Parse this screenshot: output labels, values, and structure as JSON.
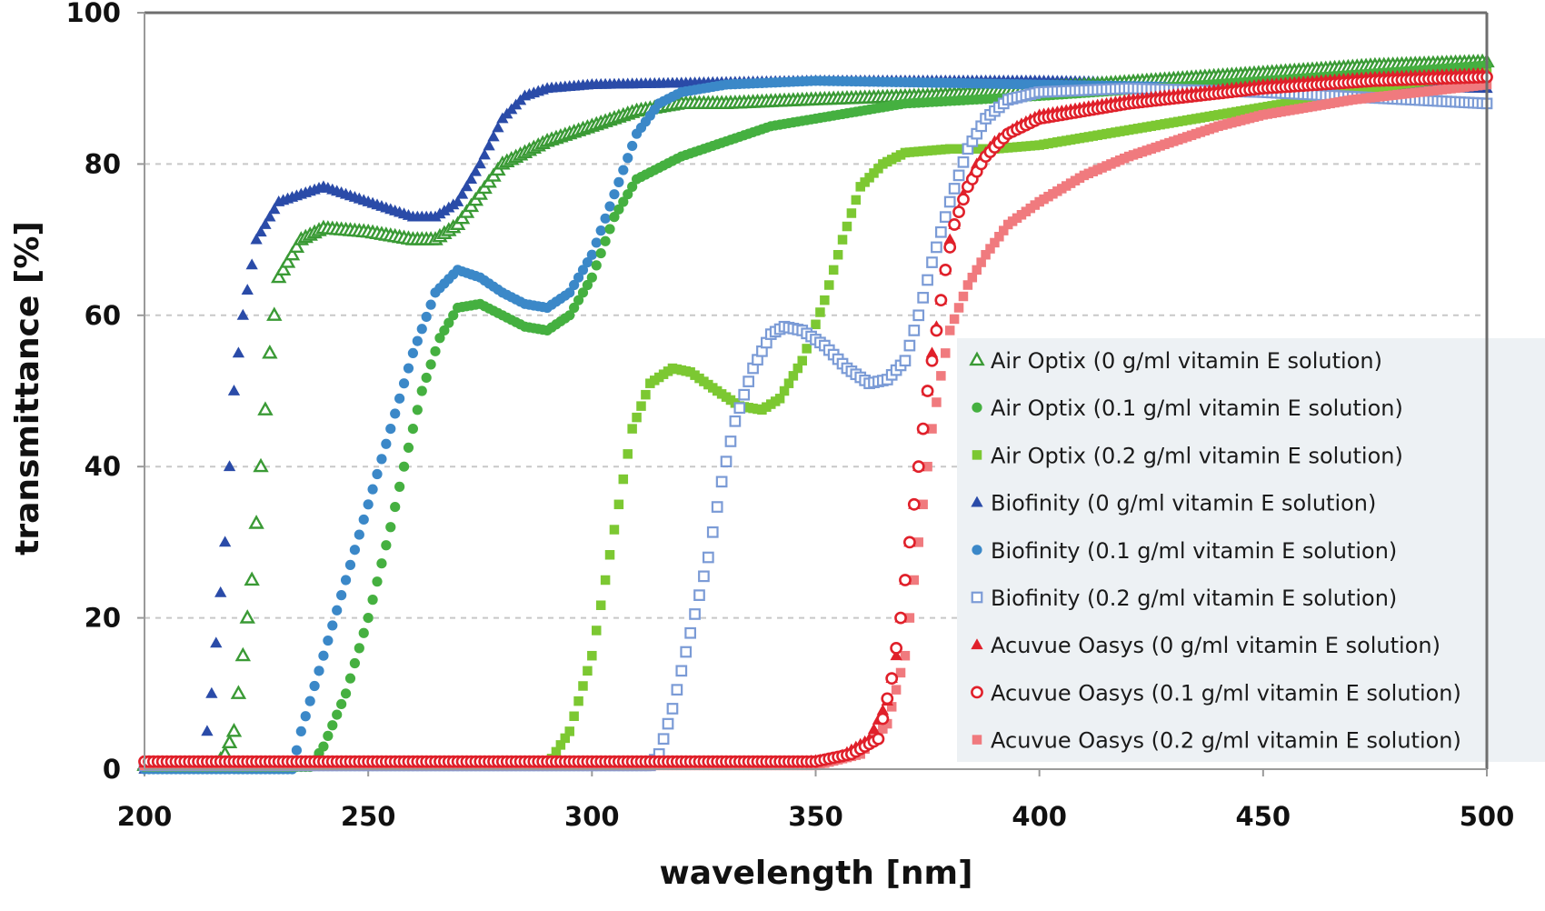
{
  "chart_data": {
    "type": "scatter",
    "title": "",
    "xlabel": "wavelength [nm]",
    "ylabel": "transmittance [%]",
    "xlim": [
      200,
      500
    ],
    "ylim": [
      0,
      100
    ],
    "xticks": [
      200,
      250,
      300,
      350,
      400,
      450,
      500
    ],
    "yticks": [
      0,
      20,
      40,
      60,
      80,
      100
    ],
    "grid": "horizontal dashed",
    "legend_position": "right",
    "series": [
      {
        "name": "Air Optix (0 g/ml vitamin E solution)",
        "marker": "triangle-open",
        "color": "#3a9a35",
        "x": [
          200,
          216,
          218,
          220,
          222,
          224,
          226,
          228,
          230,
          235,
          240,
          250,
          260,
          265,
          270,
          275,
          280,
          290,
          300,
          310,
          320,
          330,
          350,
          375,
          400,
          425,
          450,
          475,
          500
        ],
        "y": [
          0.5,
          0.5,
          2,
          5,
          15,
          25,
          40,
          55,
          65,
          70,
          71.5,
          71,
          70,
          70,
          72,
          76,
          80,
          83,
          85,
          87,
          88,
          88,
          88.5,
          89,
          90,
          91,
          92,
          93,
          93.5
        ]
      },
      {
        "name": "Air Optix (0.1 g/ml vitamin E solution)",
        "marker": "circle",
        "color": "#45b040",
        "x": [
          200,
          237,
          240,
          245,
          250,
          255,
          258,
          262,
          266,
          270,
          275,
          280,
          285,
          290,
          295,
          300,
          305,
          310,
          320,
          330,
          340,
          350,
          370,
          400,
          425,
          450,
          475,
          500
        ],
        "y": [
          0.3,
          0.3,
          3,
          10,
          20,
          32,
          40,
          50,
          57,
          61,
          61.5,
          60,
          58.5,
          58,
          60,
          65,
          73,
          78,
          81,
          83,
          85,
          86,
          88,
          89,
          90,
          91,
          92,
          93
        ]
      },
      {
        "name": "Air Optix (0.2 g/ml vitamin E solution)",
        "marker": "square",
        "color": "#7cc832",
        "x": [
          200,
          290,
          295,
          300,
          303,
          306,
          309,
          313,
          318,
          322,
          328,
          333,
          338,
          342,
          347,
          352,
          356,
          360,
          365,
          370,
          380,
          390,
          400,
          420,
          440,
          460,
          480,
          500
        ],
        "y": [
          0.5,
          0.5,
          5,
          15,
          25,
          35,
          45,
          51,
          53,
          52.5,
          50,
          48,
          47.5,
          49,
          54,
          62,
          70,
          77,
          80,
          81.5,
          82,
          82,
          82.5,
          84.5,
          86.5,
          88.5,
          90.5,
          92
        ]
      },
      {
        "name": "Biofinity (0 g/ml vitamin E solution)",
        "marker": "triangle",
        "color": "#2a4ba8",
        "x": [
          200,
          213,
          215,
          218,
          220,
          222,
          225,
          230,
          240,
          250,
          260,
          265,
          270,
          275,
          280,
          285,
          290,
          300,
          350,
          400,
          450,
          500
        ],
        "y": [
          0,
          0,
          10,
          30,
          50,
          60,
          70,
          75,
          77,
          75,
          73,
          73,
          75,
          80,
          86,
          89,
          90,
          90.5,
          91,
          91,
          90.5,
          90
        ]
      },
      {
        "name": "Biofinity (0.1 g/ml vitamin E solution)",
        "marker": "circle",
        "color": "#3b88c8",
        "x": [
          200,
          233,
          235,
          240,
          245,
          250,
          255,
          260,
          265,
          270,
          275,
          280,
          285,
          290,
          295,
          300,
          305,
          310,
          315,
          320,
          330,
          350,
          400,
          450,
          500
        ],
        "y": [
          0,
          0,
          5,
          15,
          25,
          35,
          45,
          55,
          63,
          66,
          65,
          63,
          61.5,
          61,
          63,
          68,
          76,
          84,
          88,
          89.5,
          90.5,
          91,
          90.5,
          90,
          88
        ]
      },
      {
        "name": "Biofinity (0.2 g/ml vitamin E solution)",
        "marker": "square-open",
        "color": "#7b9bd6",
        "x": [
          200,
          313,
          315,
          318,
          322,
          326,
          329,
          332,
          336,
          340,
          343,
          347,
          352,
          357,
          362,
          366,
          370,
          373,
          376,
          380,
          384,
          388,
          393,
          400,
          420,
          450,
          500
        ],
        "y": [
          0.5,
          0.5,
          2,
          8,
          18,
          28,
          38,
          46,
          53,
          57.5,
          58.5,
          58,
          56,
          53,
          51,
          51.5,
          54,
          60,
          67,
          75,
          82,
          86,
          88.5,
          89.5,
          90,
          89.5,
          88
        ]
      },
      {
        "name": "Acuvue Oasys (0 g/ml vitamin E solution)",
        "marker": "triangle",
        "color": "#e0202a",
        "x": [
          200,
          345,
          355,
          362,
          366,
          368,
          370,
          372,
          374,
          376,
          378,
          380,
          383,
          386,
          390,
          395,
          400,
          420,
          450,
          475,
          500
        ],
        "y": [
          0.8,
          0.8,
          1.5,
          4,
          9,
          15,
          25,
          35,
          45,
          55,
          62,
          70,
          76,
          80,
          83,
          85,
          86.5,
          88.5,
          90.5,
          91.5,
          92
        ]
      },
      {
        "name": "Acuvue Oasys (0.1 g/ml vitamin E solution)",
        "marker": "circle-open",
        "color": "#e0202a",
        "x": [
          200,
          350,
          358,
          364,
          367,
          369,
          371,
          373,
          375,
          377,
          379,
          381,
          384,
          388,
          393,
          400,
          420,
          450,
          475,
          500
        ],
        "y": [
          1.0,
          1.0,
          2,
          4,
          12,
          20,
          30,
          40,
          50,
          58,
          66,
          72,
          77,
          81,
          84,
          86,
          88,
          90,
          91,
          91.5
        ]
      },
      {
        "name": "Acuvue Oasys (0.2 g/ml vitamin E solution)",
        "marker": "square",
        "color": "#f07a7e",
        "x": [
          200,
          350,
          360,
          366,
          370,
          372,
          374,
          376,
          378,
          380,
          384,
          388,
          393,
          400,
          410,
          420,
          430,
          440,
          450,
          470,
          500
        ],
        "y": [
          0.5,
          0.5,
          2,
          6,
          15,
          25,
          35,
          45,
          52,
          58,
          64,
          68,
          72,
          75,
          78.5,
          81,
          83,
          85,
          86.5,
          88.5,
          90.5
        ]
      }
    ]
  }
}
